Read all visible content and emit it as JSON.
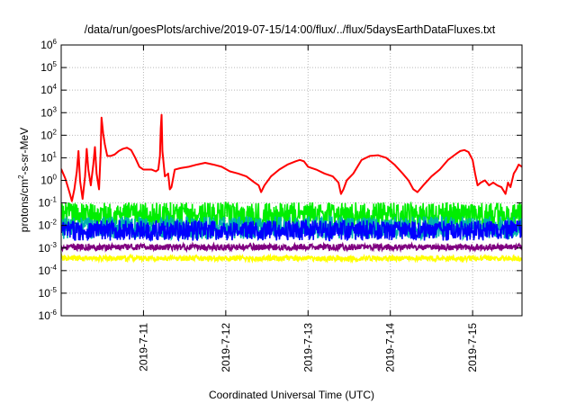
{
  "chart_data": {
    "type": "line",
    "title": "/data/run/goesPlots/archive/2019-07-15/14:00/flux/../flux/5daysEarthDataFluxes.txt",
    "xlabel": "Coordinated Universal Time (UTC)",
    "ylabel": "protons/cm²-s-sr-MeV",
    "ylabel_parts": {
      "pre": "protons/cm",
      "sup": "2",
      "post": "-s-sr-MeV"
    },
    "yscale": "log",
    "ylim": [
      1e-06,
      1000000.0
    ],
    "yticks": [
      {
        "exp": "-6"
      },
      {
        "exp": "-5"
      },
      {
        "exp": "-4"
      },
      {
        "exp": "-3"
      },
      {
        "exp": "-2"
      },
      {
        "exp": "-1"
      },
      {
        "exp": "0"
      },
      {
        "exp": "1"
      },
      {
        "exp": "2"
      },
      {
        "exp": "3"
      },
      {
        "exp": "4"
      },
      {
        "exp": "5"
      },
      {
        "exp": "6"
      }
    ],
    "ytick_base": "10",
    "xlim": [
      10.0,
      15.6
    ],
    "x_unit": "day of 2019-07",
    "xticks": [
      {
        "label": "2019-7-11",
        "day": 11
      },
      {
        "label": "2019-7-12",
        "day": 12
      },
      {
        "label": "2019-7-13",
        "day": 13
      },
      {
        "label": "2019-7-14",
        "day": 14
      },
      {
        "label": "2019-7-15",
        "day": 15
      }
    ],
    "grid": true,
    "series": [
      {
        "color": "#ff0000",
        "points": [
          [
            10.0,
            3.2
          ],
          [
            10.05,
            1.2
          ],
          [
            10.1,
            0.3
          ],
          [
            10.13,
            0.12
          ],
          [
            10.16,
            0.4
          ],
          [
            10.19,
            2.5
          ],
          [
            10.21,
            20
          ],
          [
            10.23,
            0.9
          ],
          [
            10.26,
            0.15
          ],
          [
            10.29,
            1.5
          ],
          [
            10.31,
            25
          ],
          [
            10.33,
            3
          ],
          [
            10.36,
            0.6
          ],
          [
            10.39,
            5
          ],
          [
            10.41,
            30
          ],
          [
            10.43,
            2
          ],
          [
            10.46,
            0.4
          ],
          [
            10.48,
            20
          ],
          [
            10.49,
            600
          ],
          [
            10.51,
            120
          ],
          [
            10.53,
            40
          ],
          [
            10.56,
            12
          ],
          [
            10.6,
            12
          ],
          [
            10.65,
            14
          ],
          [
            10.7,
            20
          ],
          [
            10.75,
            25
          ],
          [
            10.8,
            28
          ],
          [
            10.85,
            22
          ],
          [
            10.9,
            10
          ],
          [
            10.95,
            4
          ],
          [
            11.0,
            3
          ],
          [
            11.05,
            3
          ],
          [
            11.1,
            3
          ],
          [
            11.15,
            2.5
          ],
          [
            11.18,
            3
          ],
          [
            11.2,
            12
          ],
          [
            11.21,
            200
          ],
          [
            11.22,
            800
          ],
          [
            11.23,
            20
          ],
          [
            11.26,
            1.5
          ],
          [
            11.3,
            2
          ],
          [
            11.32,
            0.4
          ],
          [
            11.34,
            0.5
          ],
          [
            11.38,
            3
          ],
          [
            11.45,
            3.5
          ],
          [
            11.55,
            4
          ],
          [
            11.65,
            5
          ],
          [
            11.75,
            6
          ],
          [
            11.85,
            5
          ],
          [
            11.95,
            4
          ],
          [
            12.05,
            2.5
          ],
          [
            12.15,
            2
          ],
          [
            12.25,
            1.5
          ],
          [
            12.35,
            0.8
          ],
          [
            12.4,
            0.6
          ],
          [
            12.43,
            0.3
          ],
          [
            12.47,
            0.6
          ],
          [
            12.55,
            1.5
          ],
          [
            12.65,
            3
          ],
          [
            12.75,
            5
          ],
          [
            12.85,
            7
          ],
          [
            12.9,
            8
          ],
          [
            12.95,
            7
          ],
          [
            13.0,
            4
          ],
          [
            13.1,
            3
          ],
          [
            13.2,
            2
          ],
          [
            13.3,
            1.5
          ],
          [
            13.37,
            0.8
          ],
          [
            13.4,
            0.25
          ],
          [
            13.43,
            0.4
          ],
          [
            13.47,
            1
          ],
          [
            13.55,
            2
          ],
          [
            13.65,
            8
          ],
          [
            13.75,
            12
          ],
          [
            13.85,
            13
          ],
          [
            13.95,
            10
          ],
          [
            14.05,
            5
          ],
          [
            14.15,
            2
          ],
          [
            14.22,
            1
          ],
          [
            14.28,
            0.4
          ],
          [
            14.33,
            0.3
          ],
          [
            14.4,
            0.6
          ],
          [
            14.5,
            1.5
          ],
          [
            14.6,
            3
          ],
          [
            14.7,
            8
          ],
          [
            14.8,
            15
          ],
          [
            14.85,
            20
          ],
          [
            14.9,
            22
          ],
          [
            14.95,
            18
          ],
          [
            15.0,
            8
          ],
          [
            15.03,
            2
          ],
          [
            15.06,
            0.6
          ],
          [
            15.1,
            0.8
          ],
          [
            15.15,
            1
          ],
          [
            15.2,
            0.6
          ],
          [
            15.25,
            0.8
          ],
          [
            15.3,
            0.6
          ],
          [
            15.35,
            0.5
          ],
          [
            15.4,
            0.25
          ],
          [
            15.43,
            0.8
          ],
          [
            15.46,
            0.5
          ],
          [
            15.5,
            2
          ],
          [
            15.53,
            3
          ],
          [
            15.56,
            5
          ],
          [
            15.6,
            4
          ]
        ]
      },
      {
        "color": "#00ee00",
        "base": 0.03,
        "amp_dex": 0.55
      },
      {
        "color": "#00b0b0",
        "base": 0.008,
        "amp_dex": 0.5
      },
      {
        "color": "#0000ff",
        "base": 0.006,
        "amp_dex": 0.45
      },
      {
        "color": "#800080",
        "base": 0.0011,
        "amp_dex": 0.14
      },
      {
        "color": "#ffff00",
        "base": 0.00035,
        "amp_dex": 0.12
      }
    ]
  }
}
